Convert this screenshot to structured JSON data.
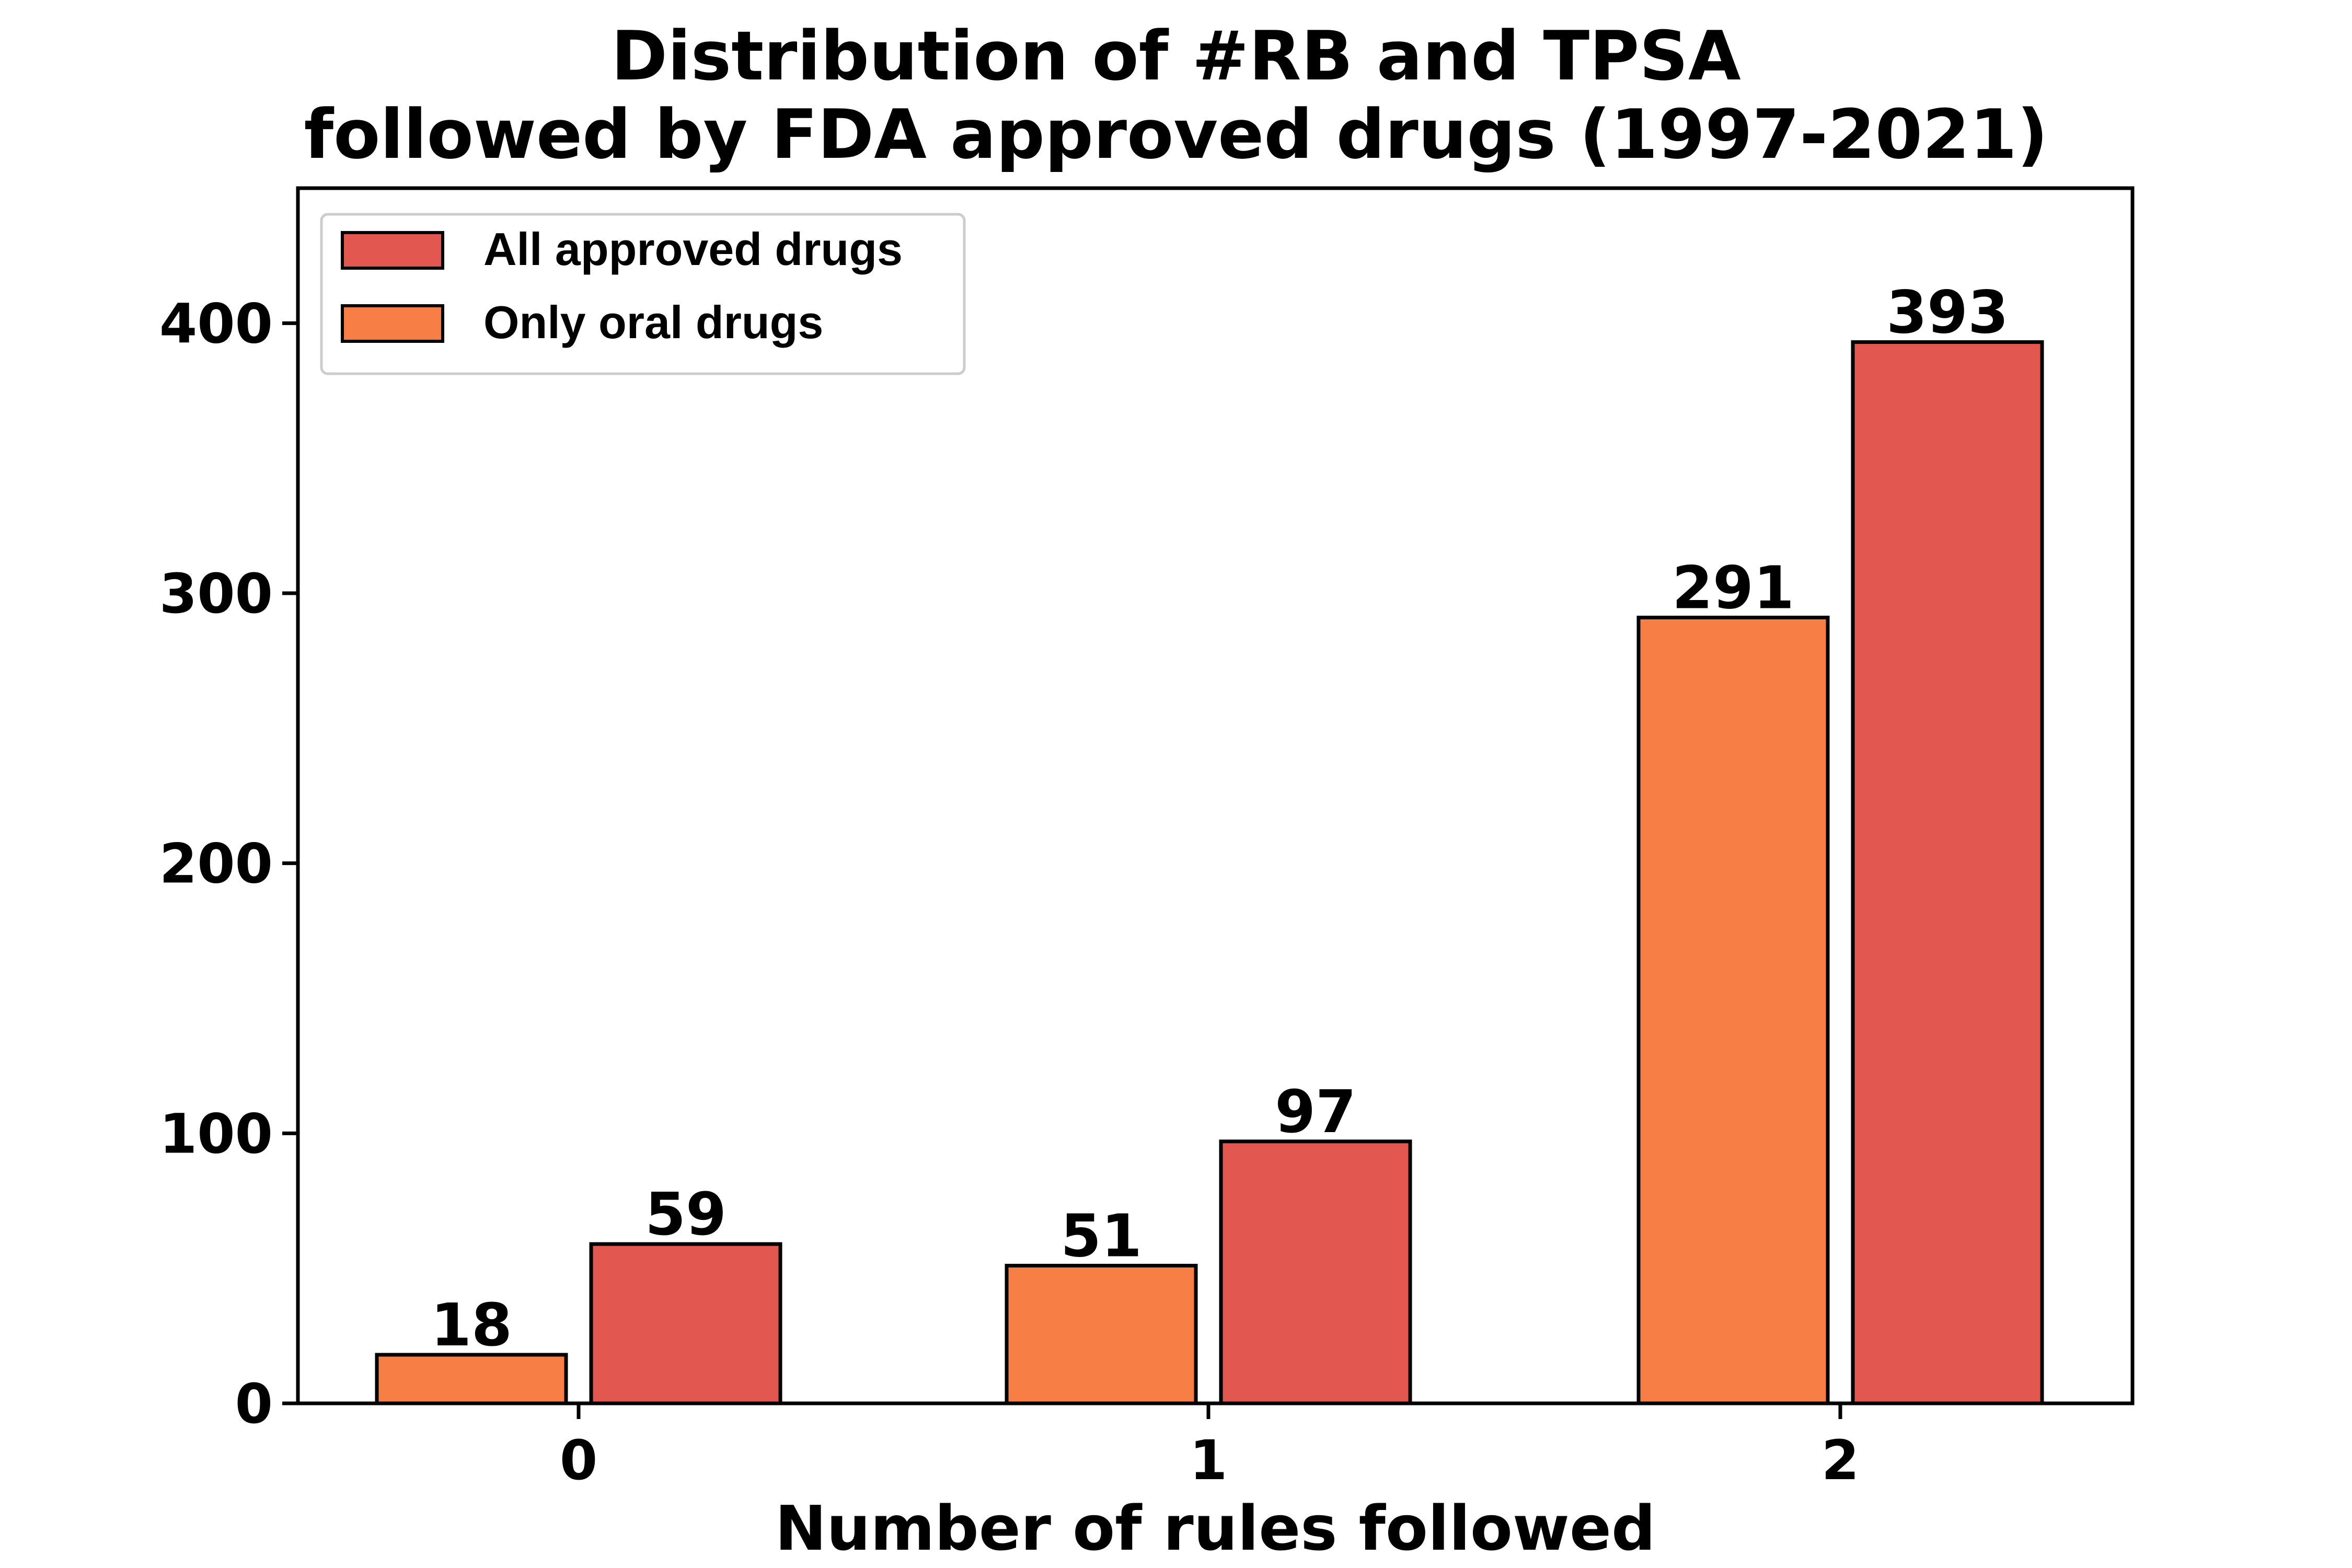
{
  "chart_data": {
    "type": "bar",
    "title": "Distribution of #RB and TPSA",
    "subtitle": "followed by FDA approved drugs (1997-2021)",
    "xlabel": "Number of rules followed",
    "ylabel": "",
    "categories": [
      "0",
      "1",
      "2"
    ],
    "series": [
      {
        "name": "Only oral drugs",
        "values": [
          18,
          51,
          291
        ],
        "color": "#f77f46"
      },
      {
        "name": "All approved drugs",
        "values": [
          59,
          97,
          393
        ],
        "color": "#e25750"
      }
    ],
    "ylim": [
      0,
      450
    ],
    "yticks": [
      0,
      100,
      200,
      300,
      400
    ],
    "grid": false,
    "legend_position": "top-left",
    "legend_order": [
      "All approved drugs",
      "Only oral drugs"
    ]
  }
}
